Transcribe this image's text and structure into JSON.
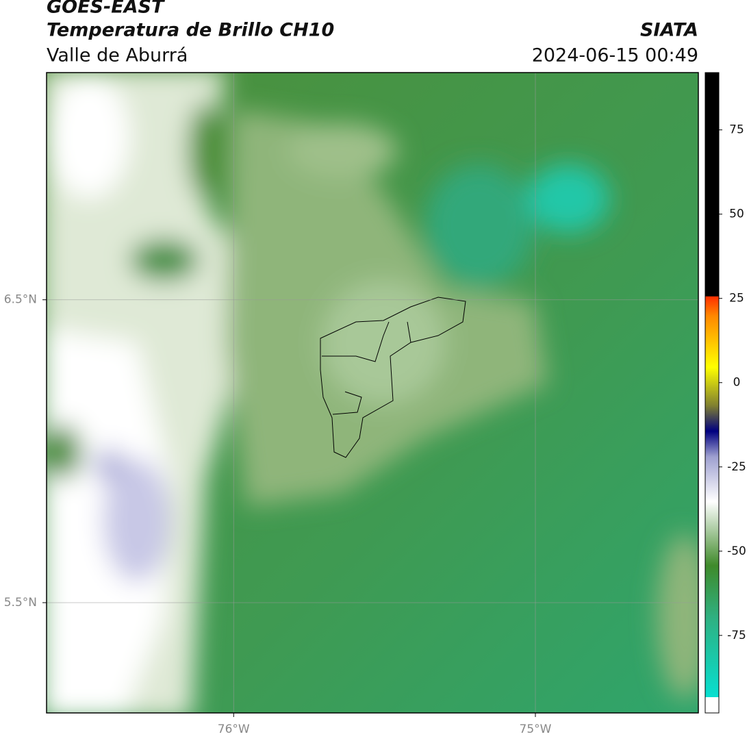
{
  "header": {
    "title": "GOES-EAST",
    "subtitle": "Temperatura de Brillo CH10",
    "location": "Valle de Aburrá",
    "source": "SIATA",
    "datetime": "2024-06-15 00:49"
  },
  "map": {
    "xlim": [
      -76.62,
      -74.46
    ],
    "ylim": [
      5.136,
      7.25
    ],
    "xticks": [
      {
        "value": -76,
        "label": "76°W"
      },
      {
        "value": -75,
        "label": "75°W"
      }
    ],
    "yticks": [
      {
        "value": 6.5,
        "label": "6.5°N"
      },
      {
        "value": 5.5,
        "label": "5.5°N"
      }
    ]
  },
  "colorbar": {
    "lim": [
      -98,
      92
    ],
    "ticks": [
      75,
      50,
      25,
      0,
      -25,
      -50,
      -75
    ]
  }
}
